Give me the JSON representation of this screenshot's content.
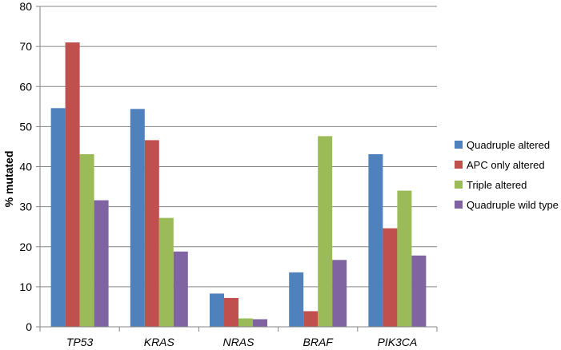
{
  "chart_data": {
    "type": "bar",
    "categories": [
      "TP53",
      "KRAS",
      "NRAS",
      "BRAF",
      "PIK3CA"
    ],
    "series": [
      {
        "name": "Quadruple altered",
        "color": "#4F81BD",
        "values": [
          54.6,
          54.4,
          8.3,
          13.6,
          43.1
        ]
      },
      {
        "name": "APC only altered",
        "color": "#C0504D",
        "values": [
          71.0,
          46.6,
          7.2,
          3.9,
          24.6
        ]
      },
      {
        "name": "Triple altered",
        "color": "#9BBB59",
        "values": [
          43.1,
          27.2,
          2.1,
          47.6,
          34.0
        ]
      },
      {
        "name": "Quadruple wild type",
        "color": "#8064A2",
        "values": [
          31.6,
          18.8,
          1.9,
          16.7,
          17.8
        ]
      }
    ],
    "ylabel": "% mutated",
    "ylim": [
      0,
      80
    ],
    "yticks": [
      0,
      10,
      20,
      30,
      40,
      50,
      60,
      70,
      80
    ],
    "grid": true,
    "legend_position": "right"
  }
}
